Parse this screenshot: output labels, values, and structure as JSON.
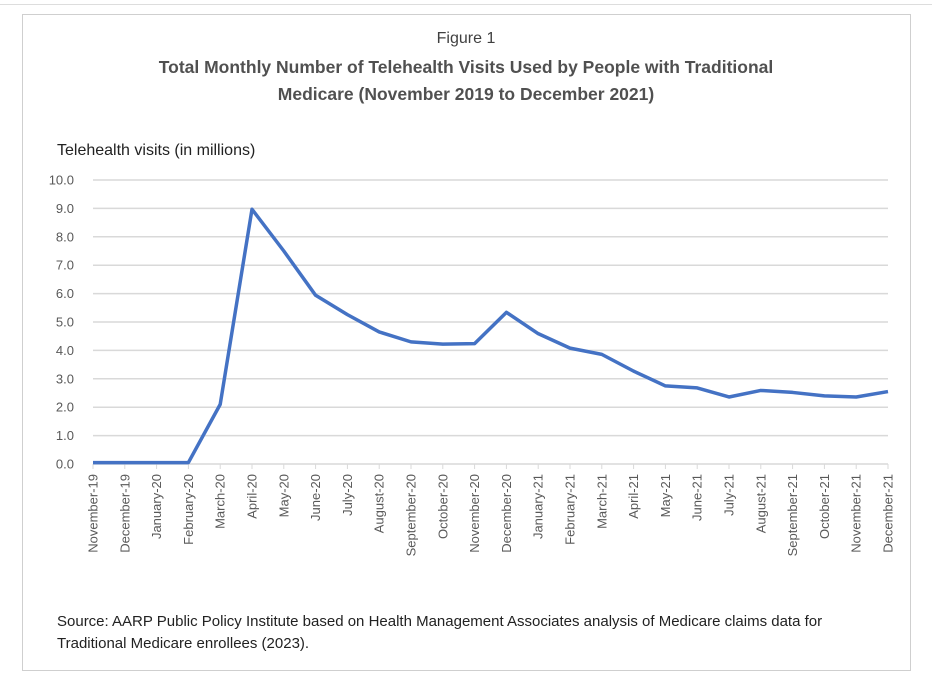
{
  "figure_label": "Figure 1",
  "source": "Source: AARP Public Policy Institute based on Health Management Associates analysis of Medicare claims data for Traditional Medicare enrollees (2023).",
  "chart_data": {
    "type": "line",
    "title": "Total Monthly Number of Telehealth Visits Used by People with Traditional Medicare (November 2019 to December 2021)",
    "ylabel": "Telehealth visits (in millions)",
    "xlabel": "",
    "ylim": [
      0,
      10
    ],
    "yticks": [
      "0.0",
      "1.0",
      "2.0",
      "3.0",
      "4.0",
      "5.0",
      "6.0",
      "7.0",
      "8.0",
      "9.0",
      "10.0"
    ],
    "grid": true,
    "line_color": "#4472C4",
    "categories": [
      "November-19",
      "December-19",
      "January-20",
      "February-20",
      "March-20",
      "April-20",
      "May-20",
      "June-20",
      "July-20",
      "August-20",
      "September-20",
      "October-20",
      "November-20",
      "December-20",
      "January-21",
      "February-21",
      "March-21",
      "April-21",
      "May-21",
      "June-21",
      "July-21",
      "August-21",
      "September-21",
      "October-21",
      "November-21",
      "December-21"
    ],
    "series": [
      {
        "values": [
          0.05,
          0.05,
          0.05,
          0.05,
          2.1,
          8.97,
          7.5,
          5.94,
          5.26,
          4.65,
          4.3,
          4.22,
          4.24,
          5.34,
          4.59,
          4.08,
          3.86,
          3.27,
          2.75,
          2.68,
          2.36,
          2.59,
          2.52,
          2.4,
          2.36,
          2.55
        ]
      }
    ]
  }
}
